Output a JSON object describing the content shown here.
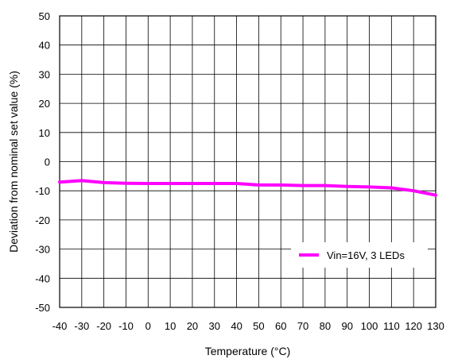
{
  "chart_data": {
    "type": "line",
    "title": "",
    "xlabel": "Temperature (°C)",
    "ylabel": "Deviation from nominal set value (%)",
    "xlim": [
      -40,
      130
    ],
    "ylim": [
      -50,
      50
    ],
    "x_ticks": [
      -40,
      -30,
      -20,
      -10,
      0,
      10,
      20,
      30,
      40,
      50,
      60,
      70,
      80,
      90,
      100,
      110,
      120,
      130
    ],
    "y_ticks": [
      50,
      40,
      30,
      20,
      10,
      0,
      -10,
      -20,
      -30,
      -40,
      -50
    ],
    "grid": true,
    "legend_position": "bottom-right",
    "series": [
      {
        "name": "Vin=16V, 3 LEDs",
        "color": "#ff00ff",
        "x": [
          -40,
          -30,
          -20,
          -10,
          0,
          10,
          20,
          30,
          40,
          50,
          60,
          70,
          80,
          90,
          100,
          110,
          120,
          130
        ],
        "y": [
          -7,
          -6.5,
          -7.2,
          -7.4,
          -7.5,
          -7.5,
          -7.5,
          -7.5,
          -7.5,
          -8,
          -8,
          -8.2,
          -8.2,
          -8.5,
          -8.7,
          -9,
          -10,
          -11.5
        ]
      }
    ]
  }
}
